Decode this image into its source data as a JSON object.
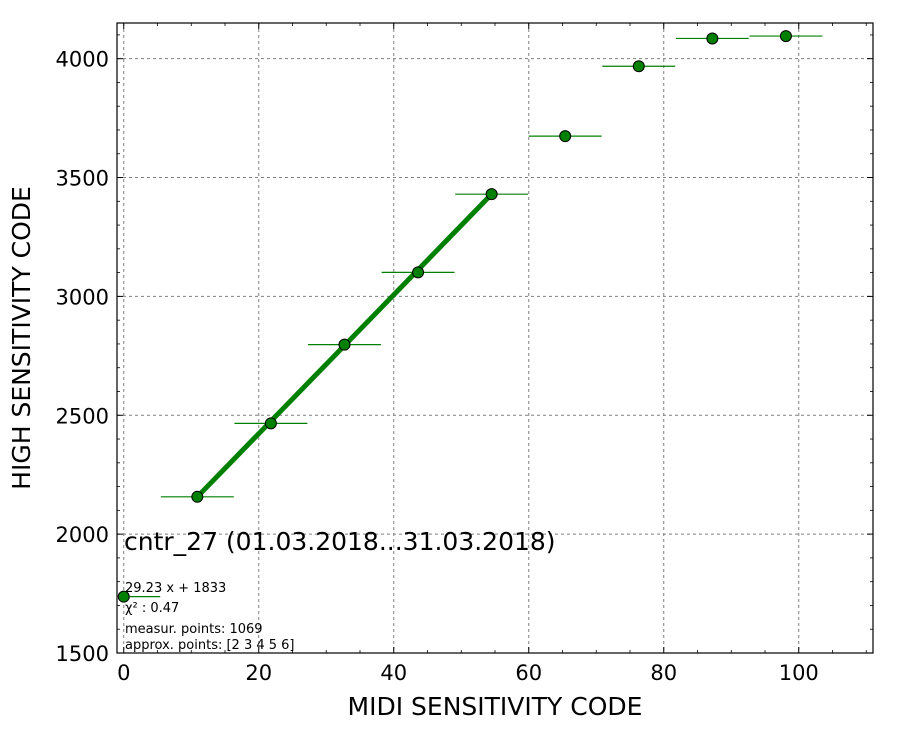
{
  "chart_data": {
    "type": "scatter",
    "title": "cntr_27 (01.03.2018...31.03.2018)",
    "xlabel": "MIDI SENSITIVITY CODE",
    "ylabel": "HIGH SENSITIVITY CODE",
    "xlim": [
      -1,
      111
    ],
    "ylim": [
      1500,
      4150
    ],
    "xticks": [
      0,
      20,
      40,
      60,
      80,
      100
    ],
    "yticks": [
      1500,
      2000,
      2500,
      3000,
      3500,
      4000
    ],
    "grid": true,
    "colors": {
      "marker": "#008000",
      "edge": "#000000",
      "fit": "#008000",
      "grid": "#808080"
    },
    "points": [
      {
        "x": 0,
        "y": 1737,
        "xerr": 5.4
      },
      {
        "x": 10.9,
        "y": 2157,
        "xerr": 5.4
      },
      {
        "x": 21.8,
        "y": 2466,
        "xerr": 5.4
      },
      {
        "x": 32.7,
        "y": 2797,
        "xerr": 5.4
      },
      {
        "x": 43.6,
        "y": 3101,
        "xerr": 5.4
      },
      {
        "x": 54.5,
        "y": 3430,
        "xerr": 5.4
      },
      {
        "x": 65.4,
        "y": 3674,
        "xerr": 5.4
      },
      {
        "x": 76.3,
        "y": 3968,
        "xerr": 5.4
      },
      {
        "x": 87.2,
        "y": 4085,
        "xerr": 5.4
      },
      {
        "x": 98.1,
        "y": 4095,
        "xerr": 5.4
      }
    ],
    "fit_line": {
      "x": [
        10.9,
        54.5
      ],
      "y": [
        2157,
        3430
      ]
    },
    "annotations": [
      "29.23 x + 1833",
      "χ² : 0.47",
      "measur. points: 1069",
      "approx. points: [2 3 4 5 6]"
    ]
  }
}
